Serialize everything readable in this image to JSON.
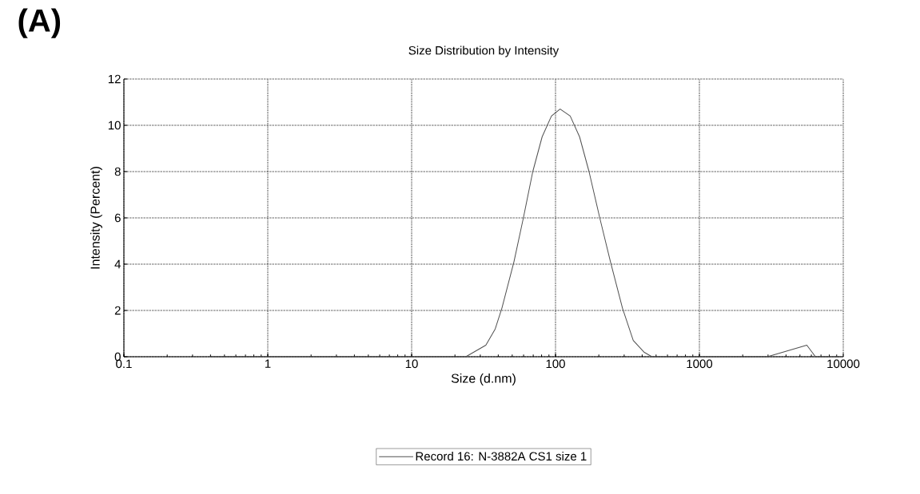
{
  "chart_data": {
    "type": "line",
    "title": "Size Distribution by Intensity",
    "xlabel": "Size (d.nm)",
    "ylabel": "Intensity (Percent)",
    "annotations": [
      "**(A)**"
    ],
    "series": [
      {
        "name": "Record 16: N-3882A CS1 size 1",
        "color": "#505050",
        "x": [
          0.4,
          23.8,
          32.8,
          38.1,
          42.4,
          51.4,
          59.8,
          69.5,
          80.7,
          93.7,
          107.6,
          126.5,
          147,
          171,
          203,
          241,
          292,
          347,
          412,
          468,
          2970,
          5580,
          6410,
          9500
        ],
        "values": [
          0,
          0,
          0.5,
          1.2,
          2.1,
          4.1,
          6.0,
          8.0,
          9.5,
          10.4,
          10.7,
          10.4,
          9.5,
          8.0,
          6.0,
          4.1,
          2.1,
          0.7,
          0.2,
          0,
          0,
          0.5,
          0,
          0
        ]
      }
    ],
    "xlim": [
      0.1,
      10000
    ],
    "ylim": [
      0,
      12
    ],
    "xticks": [
      0.1,
      1,
      10,
      100,
      1000,
      10000
    ],
    "yticks": [
      0,
      2,
      4,
      6,
      8,
      10,
      12
    ],
    "log": "x",
    "grid": true,
    "legend": "bottom",
    "marker": "none",
    "line_style": "solid"
  }
}
